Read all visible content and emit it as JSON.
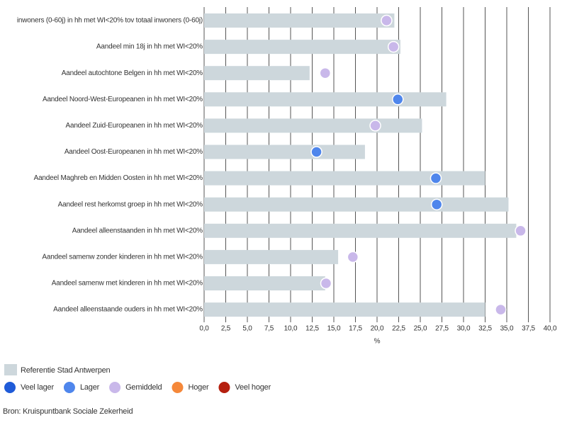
{
  "chart_data": {
    "type": "bar",
    "categories": [
      "inwoners (0-60j) in hh met WI<20% tov totaal inwoners (0-60j)",
      "Aandeel min 18j in hh met WI<20%",
      "Aandeel autochtone Belgen in hh met WI<20%",
      "Aandeel Noord-West-Europeanen in hh met WI<20%",
      "Aandeel Zuid-Europeanen in hh met WI<20%",
      "Aandeel Oost-Europeanen in hh met WI<20%",
      "Aandeel Maghreb en Midden Oosten in hh met WI<20%",
      "Aandeel rest herkomst groep in hh met WI<20%",
      "Aandeel alleenstaanden in hh met WI<20%",
      "Aandeel samenw zonder kinderen in hh met WI<20%",
      "Aandeel samenw met kinderen in hh met WI<20%",
      "Aandeel alleenstaande ouders in hh met WI<20%"
    ],
    "series": [
      {
        "name": "Referentie Stad Antwerpen",
        "color": "#cdd7dc",
        "values": [
          22.0,
          22.7,
          12.2,
          28.0,
          25.2,
          18.6,
          32.5,
          35.2,
          36.1,
          15.5,
          14.0,
          32.5
        ]
      }
    ],
    "markers": {
      "values": [
        21.1,
        21.9,
        14.0,
        22.4,
        19.8,
        13.0,
        26.8,
        26.9,
        36.6,
        17.2,
        14.1,
        34.3
      ],
      "classes": [
        2,
        2,
        2,
        1,
        2,
        1,
        1,
        1,
        2,
        2,
        2,
        2
      ]
    },
    "marker_classes": [
      {
        "name": "Veel lager",
        "color": "#1f5bd8"
      },
      {
        "name": "Lager",
        "color": "#4f86ec"
      },
      {
        "name": "Gemiddeld",
        "color": "#c9b8ea"
      },
      {
        "name": "Hoger",
        "color": "#f5883a"
      },
      {
        "name": "Veel hoger",
        "color": "#b5200f"
      }
    ],
    "xlabel": "%",
    "xlim": [
      0,
      40
    ],
    "xticks": [
      {
        "value": 0,
        "label": "0,0"
      },
      {
        "value": 2.5,
        "label": "2,5"
      },
      {
        "value": 5,
        "label": "5,0"
      },
      {
        "value": 7.5,
        "label": "7,5"
      },
      {
        "value": 10,
        "label": "10,0"
      },
      {
        "value": 12.5,
        "label": "12,5"
      },
      {
        "value": 15,
        "label": "15,0"
      },
      {
        "value": 17.5,
        "label": "17,5"
      },
      {
        "value": 20,
        "label": "20,0"
      },
      {
        "value": 22.5,
        "label": "22,5"
      },
      {
        "value": 25,
        "label": "25,0"
      },
      {
        "value": 27.5,
        "label": "27,5"
      },
      {
        "value": 30,
        "label": "30,0"
      },
      {
        "value": 32.5,
        "label": "32,5"
      },
      {
        "value": 35,
        "label": "35,0"
      },
      {
        "value": 37.5,
        "label": "37,5"
      },
      {
        "value": 40,
        "label": "40,0"
      }
    ],
    "grid": true,
    "source": "Bron: Kruispuntbank Sociale Zekerheid"
  }
}
